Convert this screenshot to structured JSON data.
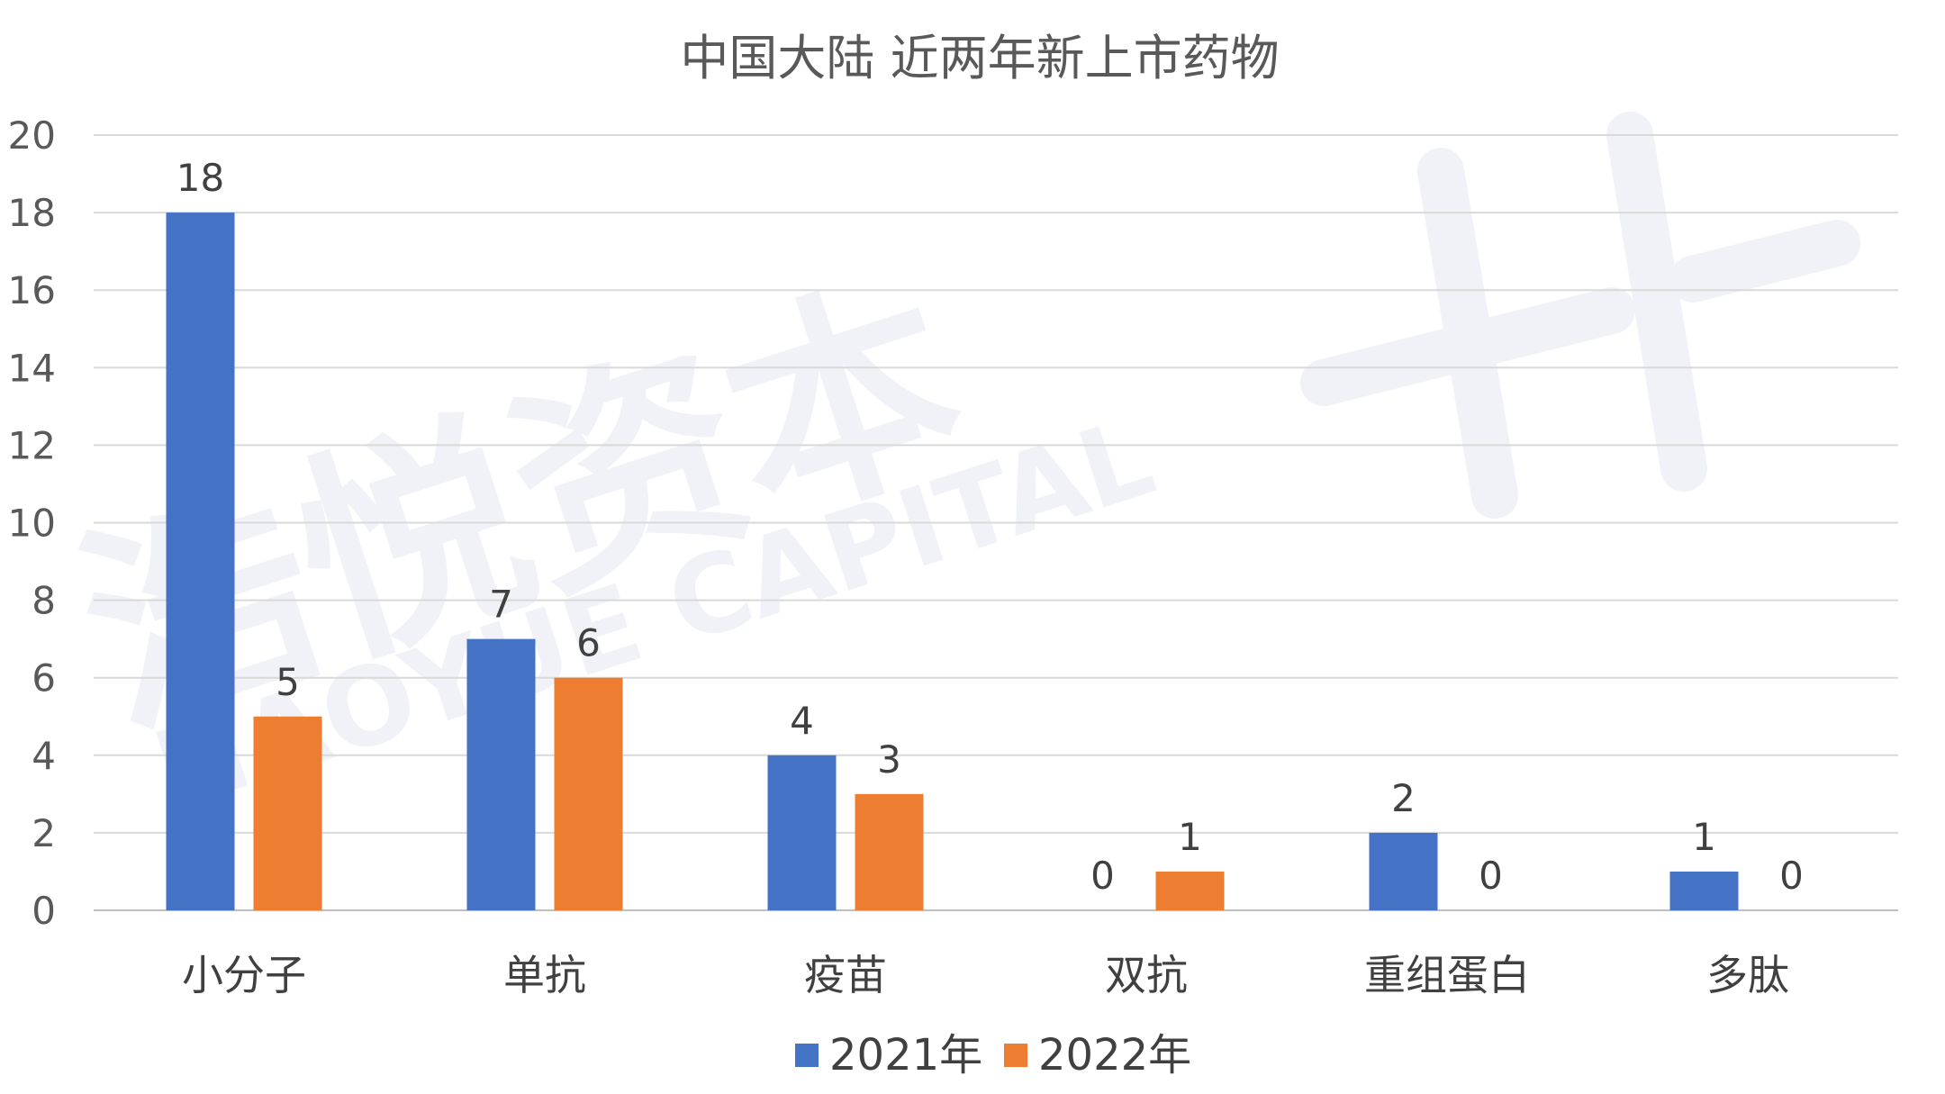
{
  "chart_data": {
    "type": "bar",
    "title": "中国大陆 近两年新上市药物",
    "categories": [
      "小分子",
      "单抗",
      "疫苗",
      "双抗",
      "重组蛋白",
      "多肽"
    ],
    "series": [
      {
        "name": "2021年",
        "color": "#4472c4",
        "values": [
          18,
          7,
          4,
          0,
          2,
          1
        ]
      },
      {
        "name": "2022年",
        "color": "#ed7d31",
        "values": [
          5,
          6,
          3,
          1,
          0,
          0
        ]
      }
    ],
    "ylim": [
      0,
      20
    ],
    "yticks": [
      0,
      2,
      4,
      6,
      8,
      10,
      12,
      14,
      16,
      18,
      20
    ],
    "xlabel": "",
    "ylabel": "",
    "grid": true,
    "legend_position": "bottom",
    "data_labels": true
  },
  "watermark": {
    "cn": "浩悦资本",
    "en": "HAOYUE CAPITAL"
  }
}
